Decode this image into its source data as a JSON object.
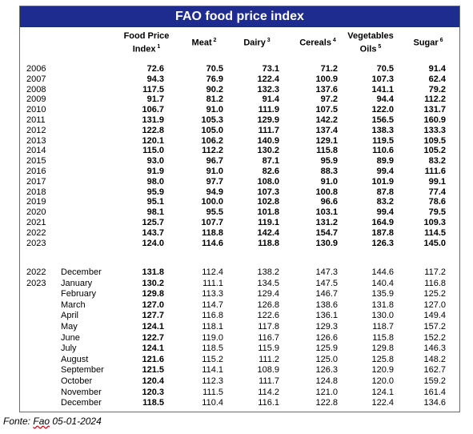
{
  "title": "FAO food price index",
  "headers": [
    {
      "lines": [
        "Food Price",
        "Index"
      ],
      "sup": "1"
    },
    {
      "lines": [
        "Meat"
      ],
      "sup": "2"
    },
    {
      "lines": [
        "Dairy"
      ],
      "sup": "3"
    },
    {
      "lines": [
        "Cereals"
      ],
      "sup": "4"
    },
    {
      "lines": [
        "Vegetables",
        "Oils"
      ],
      "sup": "5"
    },
    {
      "lines": [
        "Sugar"
      ],
      "sup": "6"
    }
  ],
  "annual_rows": [
    {
      "year": "2006",
      "values": [
        "72.6",
        "70.5",
        "73.1",
        "71.2",
        "70.5",
        "91.4"
      ]
    },
    {
      "year": "2007",
      "values": [
        "94.3",
        "76.9",
        "122.4",
        "100.9",
        "107.3",
        "62.4"
      ]
    },
    {
      "year": "2008",
      "values": [
        "117.5",
        "90.2",
        "132.3",
        "137.6",
        "141.1",
        "79.2"
      ]
    },
    {
      "year": "2009",
      "values": [
        "91.7",
        "81.2",
        "91.4",
        "97.2",
        "94.4",
        "112.2"
      ]
    },
    {
      "year": "2010",
      "values": [
        "106.7",
        "91.0",
        "111.9",
        "107.5",
        "122.0",
        "131.7"
      ]
    },
    {
      "year": "2011",
      "values": [
        "131.9",
        "105.3",
        "129.9",
        "142.2",
        "156.5",
        "160.9"
      ]
    },
    {
      "year": "2012",
      "values": [
        "122.8",
        "105.0",
        "111.7",
        "137.4",
        "138.3",
        "133.3"
      ]
    },
    {
      "year": "2013",
      "values": [
        "120.1",
        "106.2",
        "140.9",
        "129.1",
        "119.5",
        "109.5"
      ]
    },
    {
      "year": "2014",
      "values": [
        "115.0",
        "112.2",
        "130.2",
        "115.8",
        "110.6",
        "105.2"
      ]
    },
    {
      "year": "2015",
      "values": [
        "93.0",
        "96.7",
        "87.1",
        "95.9",
        "89.9",
        "83.2"
      ]
    },
    {
      "year": "2016",
      "values": [
        "91.9",
        "91.0",
        "82.6",
        "88.3",
        "99.4",
        "111.6"
      ]
    },
    {
      "year": "2017",
      "values": [
        "98.0",
        "97.7",
        "108.0",
        "91.0",
        "101.9",
        "99.1"
      ]
    },
    {
      "year": "2018",
      "values": [
        "95.9",
        "94.9",
        "107.3",
        "100.8",
        "87.8",
        "77.4"
      ]
    },
    {
      "year": "2019",
      "values": [
        "95.1",
        "100.0",
        "102.8",
        "96.6",
        "83.2",
        "78.6"
      ]
    },
    {
      "year": "2020",
      "values": [
        "98.1",
        "95.5",
        "101.8",
        "103.1",
        "99.4",
        "79.5"
      ]
    },
    {
      "year": "2021",
      "values": [
        "125.7",
        "107.7",
        "119.1",
        "131.2",
        "164.9",
        "109.3"
      ]
    },
    {
      "year": "2022",
      "values": [
        "143.7",
        "118.8",
        "142.4",
        "154.7",
        "187.8",
        "114.5"
      ]
    },
    {
      "year": "2023",
      "values": [
        "124.0",
        "114.6",
        "118.8",
        "130.9",
        "126.3",
        "145.0"
      ]
    }
  ],
  "monthly_rows": [
    {
      "year": "2022",
      "month": "December",
      "values": [
        "131.8",
        "112.4",
        "138.2",
        "147.3",
        "144.6",
        "117.2"
      ]
    },
    {
      "year": "2023",
      "month": "January",
      "values": [
        "130.2",
        "111.1",
        "134.5",
        "147.5",
        "140.4",
        "116.8"
      ]
    },
    {
      "year": "",
      "month": "February",
      "values": [
        "129.8",
        "113.3",
        "129.4",
        "146.7",
        "135.9",
        "125.2"
      ]
    },
    {
      "year": "",
      "month": "March",
      "values": [
        "127.0",
        "114.7",
        "126.8",
        "138.6",
        "131.8",
        "127.0"
      ]
    },
    {
      "year": "",
      "month": "April",
      "values": [
        "127.7",
        "116.8",
        "122.6",
        "136.1",
        "130.0",
        "149.4"
      ]
    },
    {
      "year": "",
      "month": "May",
      "values": [
        "124.1",
        "118.1",
        "117.8",
        "129.3",
        "118.7",
        "157.2"
      ]
    },
    {
      "year": "",
      "month": "June",
      "values": [
        "122.7",
        "119.0",
        "116.7",
        "126.6",
        "115.8",
        "152.2"
      ]
    },
    {
      "year": "",
      "month": "July",
      "values": [
        "124.1",
        "118.5",
        "115.9",
        "125.9",
        "129.8",
        "146.3"
      ]
    },
    {
      "year": "",
      "month": "August",
      "values": [
        "121.6",
        "115.2",
        "111.2",
        "125.0",
        "125.8",
        "148.2"
      ]
    },
    {
      "year": "",
      "month": "September",
      "values": [
        "121.5",
        "114.1",
        "108.9",
        "126.3",
        "120.9",
        "162.7"
      ]
    },
    {
      "year": "",
      "month": "October",
      "values": [
        "120.4",
        "112.3",
        "111.7",
        "124.8",
        "120.0",
        "159.2"
      ]
    },
    {
      "year": "",
      "month": "November",
      "values": [
        "120.3",
        "111.5",
        "114.2",
        "121.0",
        "124.1",
        "161.4"
      ]
    },
    {
      "year": "",
      "month": "December",
      "values": [
        "118.5",
        "110.4",
        "116.1",
        "122.8",
        "122.4",
        "134.6"
      ]
    }
  ],
  "source": {
    "prefix": "Fonte: ",
    "fao": "Fao",
    "date": " 05-01-2024"
  },
  "colors": {
    "title_bg": "#1f2c8f",
    "title_text": "#ffffff"
  }
}
